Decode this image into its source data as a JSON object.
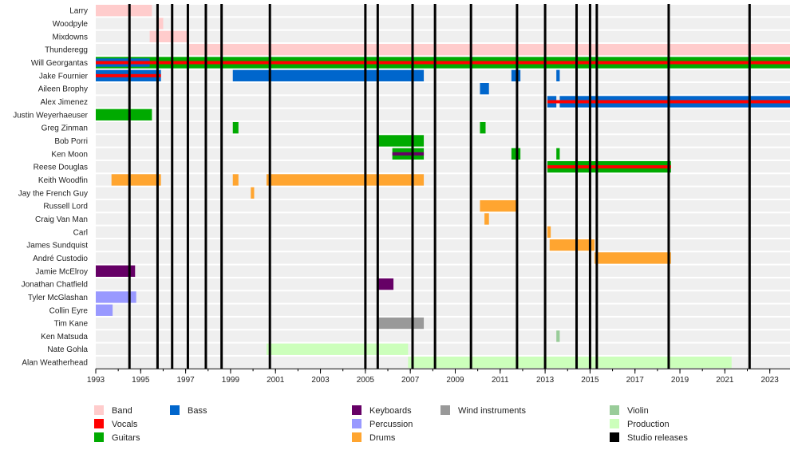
{
  "chart_data": {
    "type": "timeline",
    "xlim": [
      1993,
      2023.9
    ],
    "ticks": [
      1993,
      1995,
      1997,
      1999,
      2001,
      2003,
      2005,
      2007,
      2009,
      2011,
      2013,
      2015,
      2017,
      2019,
      2021,
      2023
    ],
    "categories": {
      "band": {
        "label": "Band",
        "color": "#ffcccc"
      },
      "vocals": {
        "label": "Vocals",
        "color": "#ff0000"
      },
      "guitars": {
        "label": "Guitars",
        "color": "#00aa00"
      },
      "bass": {
        "label": "Bass",
        "color": "#0066cc"
      },
      "keyboards": {
        "label": "Keyboards",
        "color": "#660066"
      },
      "percussion": {
        "label": "Percussion",
        "color": "#9999ff"
      },
      "drums": {
        "label": "Drums",
        "color": "#ffa530"
      },
      "wind": {
        "label": "Wind instruments",
        "color": "#999999"
      },
      "violin": {
        "label": "Violin",
        "color": "#99cc99"
      },
      "production": {
        "label": "Production",
        "color": "#ccffbb"
      },
      "studio": {
        "label": "Studio releases",
        "color": "#000000"
      }
    },
    "rows": [
      {
        "name": "Larry",
        "bars": [
          {
            "cat": "band",
            "start": 1993.0,
            "end": 1995.5
          }
        ]
      },
      {
        "name": "Woodpyle",
        "bars": [
          {
            "cat": "band",
            "start": 1995.7,
            "end": 1996.0
          }
        ]
      },
      {
        "name": "Mixdowns",
        "bars": [
          {
            "cat": "band",
            "start": 1995.4,
            "end": 1997.1
          }
        ]
      },
      {
        "name": "Thunderegg",
        "bars": [
          {
            "cat": "band",
            "start": 1997.1,
            "end": 2023.9
          }
        ]
      },
      {
        "name": "Will Georgantas",
        "bars": [
          {
            "cat": "guitars",
            "start": 1993.0,
            "end": 2023.9
          },
          {
            "cat": "bass",
            "start": 1993.0,
            "end": 1995.4,
            "lane": 1
          },
          {
            "cat": "vocals",
            "start": 1993.0,
            "end": 2023.9,
            "lane": 2
          }
        ]
      },
      {
        "name": "Jake Fournier",
        "bars": [
          {
            "cat": "bass",
            "start": 1993.0,
            "end": 1995.9
          },
          {
            "cat": "vocals",
            "start": 1993.0,
            "end": 1995.9,
            "lane": 2
          },
          {
            "cat": "bass",
            "start": 1999.1,
            "end": 2007.6
          },
          {
            "cat": "bass",
            "start": 2011.5,
            "end": 2011.9
          },
          {
            "cat": "bass",
            "start": 2013.5,
            "end": 2013.65
          }
        ]
      },
      {
        "name": "Aileen Brophy",
        "bars": [
          {
            "cat": "bass",
            "start": 2010.1,
            "end": 2010.5
          }
        ]
      },
      {
        "name": "Alex Jimenez",
        "bars": [
          {
            "cat": "bass",
            "start": 2013.1,
            "end": 2013.5
          },
          {
            "cat": "bass",
            "start": 2013.65,
            "end": 2023.9
          },
          {
            "cat": "vocals",
            "start": 2013.1,
            "end": 2023.9,
            "lane": 2
          }
        ]
      },
      {
        "name": "Justin Weyerhaeuser",
        "bars": [
          {
            "cat": "guitars",
            "start": 1993.0,
            "end": 1995.5
          }
        ]
      },
      {
        "name": "Greg Zinman",
        "bars": [
          {
            "cat": "guitars",
            "start": 1999.1,
            "end": 1999.35
          },
          {
            "cat": "guitars",
            "start": 2010.1,
            "end": 2010.35
          }
        ]
      },
      {
        "name": "Bob Porri",
        "bars": [
          {
            "cat": "guitars",
            "start": 2005.5,
            "end": 2007.6
          }
        ]
      },
      {
        "name": "Ken Moon",
        "bars": [
          {
            "cat": "guitars",
            "start": 2006.2,
            "end": 2007.6
          },
          {
            "cat": "keyboards",
            "start": 2006.2,
            "end": 2007.6,
            "lane": 2
          },
          {
            "cat": "guitars",
            "start": 2011.5,
            "end": 2011.9
          },
          {
            "cat": "guitars",
            "start": 2013.5,
            "end": 2013.65
          }
        ]
      },
      {
        "name": "Reese Douglas",
        "bars": [
          {
            "cat": "guitars",
            "start": 2013.1,
            "end": 2018.6
          },
          {
            "cat": "vocals",
            "start": 2013.1,
            "end": 2018.6,
            "lane": 2
          }
        ]
      },
      {
        "name": "Keith Woodfin",
        "bars": [
          {
            "cat": "drums",
            "start": 1993.7,
            "end": 1995.9
          },
          {
            "cat": "drums",
            "start": 1999.1,
            "end": 1999.35
          },
          {
            "cat": "drums",
            "start": 2000.6,
            "end": 2007.6
          }
        ]
      },
      {
        "name": "Jay the French Guy",
        "bars": [
          {
            "cat": "drums",
            "start": 1999.9,
            "end": 2000.05
          }
        ]
      },
      {
        "name": "Russell Lord",
        "bars": [
          {
            "cat": "drums",
            "start": 2010.1,
            "end": 2011.8
          }
        ]
      },
      {
        "name": "Craig Van Man",
        "bars": [
          {
            "cat": "drums",
            "start": 2010.3,
            "end": 2010.5
          }
        ]
      },
      {
        "name": "Carl",
        "bars": [
          {
            "cat": "drums",
            "start": 2013.1,
            "end": 2013.25
          }
        ]
      },
      {
        "name": "James Sundquist",
        "bars": [
          {
            "cat": "drums",
            "start": 2013.2,
            "end": 2015.2
          }
        ]
      },
      {
        "name": "André Custodio",
        "bars": [
          {
            "cat": "drums",
            "start": 2015.2,
            "end": 2018.6
          }
        ]
      },
      {
        "name": "Jamie McElroy",
        "bars": [
          {
            "cat": "keyboards",
            "start": 1993.0,
            "end": 1994.75
          }
        ]
      },
      {
        "name": "Jonathan Chatfield",
        "bars": [
          {
            "cat": "keyboards",
            "start": 2005.5,
            "end": 2006.25
          }
        ]
      },
      {
        "name": "Tyler McGlashan",
        "bars": [
          {
            "cat": "percussion",
            "start": 1993.0,
            "end": 1994.8
          }
        ]
      },
      {
        "name": "Collin Eyre",
        "bars": [
          {
            "cat": "percussion",
            "start": 1993.0,
            "end": 1993.75
          }
        ]
      },
      {
        "name": "Tim Kane",
        "bars": [
          {
            "cat": "wind",
            "start": 2005.5,
            "end": 2007.6
          }
        ]
      },
      {
        "name": "Ken Matsuda",
        "bars": [
          {
            "cat": "violin",
            "start": 2013.5,
            "end": 2013.65
          }
        ]
      },
      {
        "name": "Nate Gohla",
        "bars": [
          {
            "cat": "production",
            "start": 2000.6,
            "end": 2006.9
          }
        ]
      },
      {
        "name": "Alan Weatherhead",
        "bars": [
          {
            "cat": "production",
            "start": 2006.9,
            "end": 2021.3
          }
        ]
      }
    ],
    "studio_releases": [
      1994.5,
      1995.75,
      1996.4,
      1997.1,
      1997.9,
      1998.6,
      2000.75,
      2005.0,
      2005.55,
      2007.1,
      2008.1,
      2009.7,
      2011.75,
      2013.0,
      2014.4,
      2015.0,
      2015.3,
      2018.5,
      2022.1
    ],
    "legend": [
      [
        "band",
        "vocals",
        "guitars"
      ],
      [
        "bass"
      ],
      [
        "keyboards",
        "percussion",
        "drums"
      ],
      [
        "wind"
      ],
      [
        "violin",
        "production",
        "studio"
      ]
    ]
  }
}
